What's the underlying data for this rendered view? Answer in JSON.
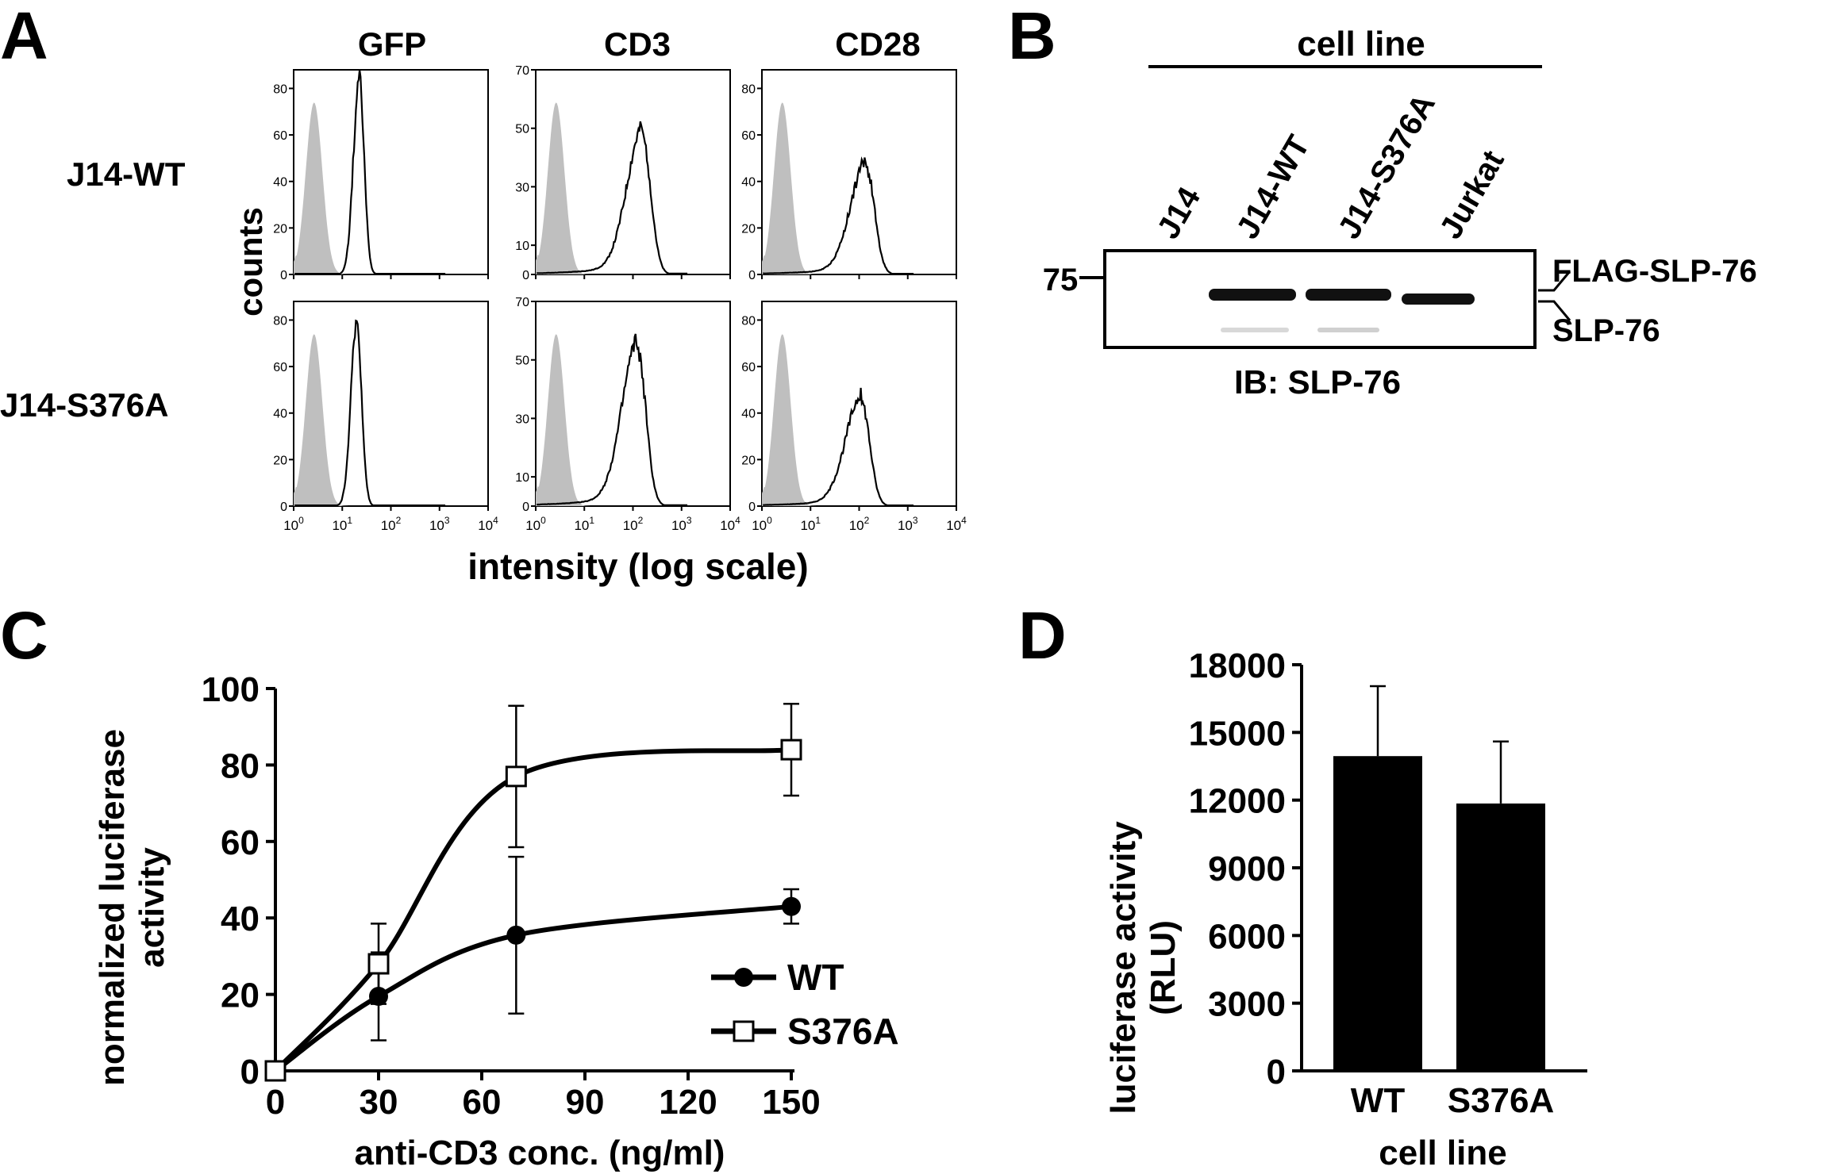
{
  "panel_letters": {
    "a": "A",
    "b": "B",
    "c": "C",
    "d": "D"
  },
  "panel_a": {
    "columns": [
      "GFP",
      "CD3",
      "CD28"
    ],
    "rows": [
      "J14-WT",
      "J14-S376A"
    ],
    "ylabel": "counts",
    "xlabel": "intensity (log scale)",
    "yticks_by_column": [
      [
        0,
        20,
        40,
        60,
        80
      ],
      [
        0,
        10,
        30,
        50,
        70
      ],
      [
        0,
        20,
        40,
        60,
        80
      ]
    ],
    "ylim_by_column": [
      [
        0,
        88
      ],
      [
        0,
        70
      ],
      [
        0,
        88
      ]
    ],
    "x_tick_bases": [
      "10",
      "10",
      "10",
      "10",
      "10"
    ],
    "x_tick_exps": [
      "0",
      "1",
      "2",
      "3",
      "4"
    ],
    "peak_counts": [
      [
        85,
        47,
        46
      ],
      [
        80,
        53,
        45
      ]
    ],
    "peak_x_log10": [
      [
        1.35,
        2.2,
        2.15
      ],
      [
        1.3,
        2.1,
        2.05
      ]
    ],
    "isotype_fill": "#bfbfbf"
  },
  "panel_b": {
    "header": "cell line",
    "lanes": [
      "J14",
      "J14-WT",
      "J14-S376A",
      "Jurkat"
    ],
    "marker": "75",
    "bands": [
      "FLAG-SLP-76",
      "SLP-76"
    ],
    "footer": "IB: SLP-76"
  },
  "chart_data": [
    {
      "type": "line",
      "panel": "C",
      "xlabel": "anti-CD3 conc. (ng/ml)",
      "ylabel_lines": [
        "normalized luciferase",
        "activity"
      ],
      "x": [
        0,
        30,
        70,
        150
      ],
      "xticks": [
        0,
        30,
        60,
        90,
        120,
        150
      ],
      "yticks": [
        0,
        20,
        40,
        60,
        80,
        100
      ],
      "xlim": [
        0,
        150
      ],
      "ylim": [
        0,
        100
      ],
      "series": [
        {
          "name": "WT",
          "marker": "filled-circle",
          "values": [
            0,
            19.5,
            35.5,
            43
          ],
          "errors": [
            0,
            11.5,
            20.5,
            4.5
          ]
        },
        {
          "name": "S376A",
          "marker": "open-square",
          "values": [
            0,
            28,
            77,
            84
          ],
          "errors": [
            0,
            10.5,
            18.5,
            12
          ]
        }
      ],
      "legend": "bottom-right"
    },
    {
      "type": "bar",
      "panel": "D",
      "categories": [
        "WT",
        "S376A"
      ],
      "values": [
        13950,
        11850
      ],
      "errors": [
        3100,
        2750
      ],
      "xlabel": "cell line",
      "ylabel_lines": [
        "luciferase activity",
        "(RLU)"
      ],
      "yticks": [
        0,
        3000,
        6000,
        9000,
        12000,
        15000,
        18000
      ],
      "ylim": [
        0,
        18000
      ],
      "bar_color": "#000000"
    }
  ]
}
